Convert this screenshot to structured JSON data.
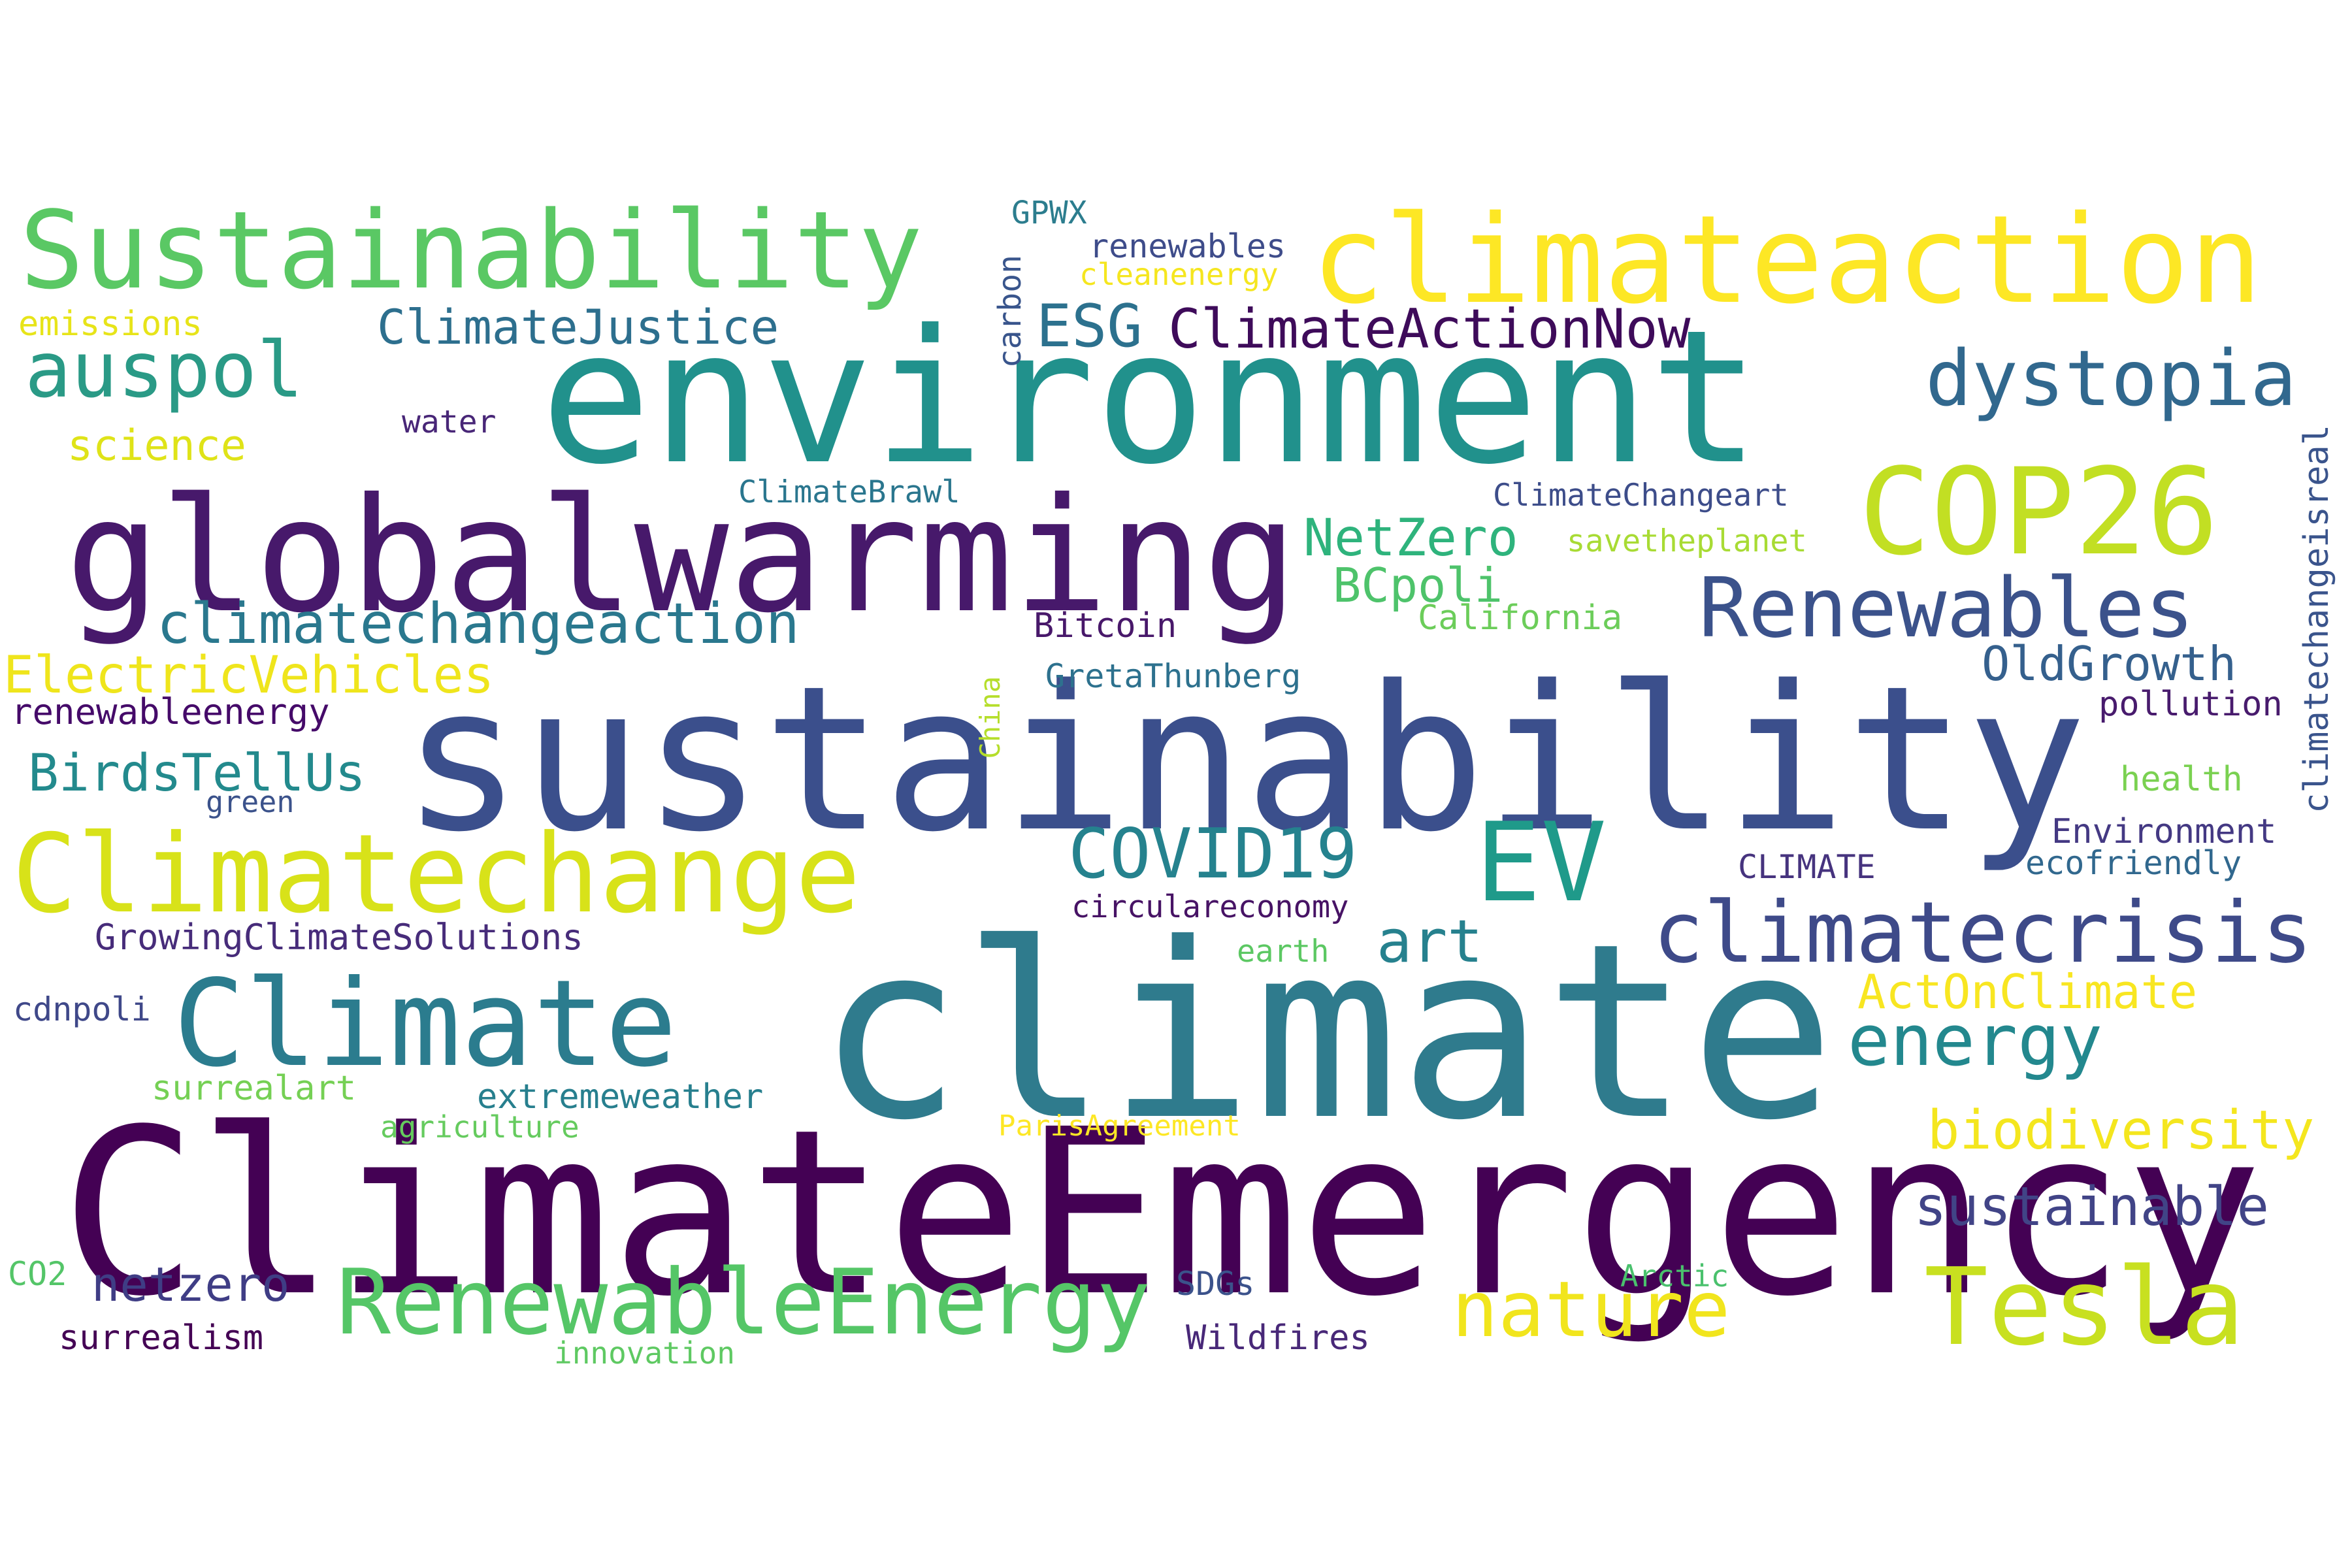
{
  "cloud": {
    "words": [
      {
        "text": "climate",
        "color": "#2f7b8d"
      },
      {
        "text": "ClimateEmergency",
        "color": "#440154"
      },
      {
        "text": "sustainability",
        "color": "#3b4f8c"
      },
      {
        "text": "environment",
        "color": "#21918c"
      },
      {
        "text": "globalwarming",
        "color": "#47196b"
      },
      {
        "text": "climateaction",
        "color": "#fde725"
      },
      {
        "text": "Sustainability",
        "color": "#5ac864"
      },
      {
        "text": "Climatechange",
        "color": "#d8e219"
      },
      {
        "text": "Climate",
        "color": "#2b7c8e"
      },
      {
        "text": "COP26",
        "color": "#c2df23"
      },
      {
        "text": "RenewableEnergy",
        "color": "#55c667"
      },
      {
        "text": "Tesla",
        "color": "#c8e020"
      },
      {
        "text": "EV",
        "color": "#1f9a8a"
      },
      {
        "text": "climatecrisis",
        "color": "#3e4a89"
      },
      {
        "text": "Renewables",
        "color": "#3b528b"
      },
      {
        "text": "dystopia",
        "color": "#31688e"
      },
      {
        "text": "nature",
        "color": "#f1e51d"
      },
      {
        "text": "auspol",
        "color": "#2a9a86"
      },
      {
        "text": "energy",
        "color": "#23888e"
      },
      {
        "text": "COVID19",
        "color": "#25828e"
      },
      {
        "text": "climatechangeaction",
        "color": "#2a788e"
      },
      {
        "text": "ClimateActionNow",
        "color": "#3e0b5a"
      },
      {
        "text": "ClimateJustice",
        "color": "#2d6f8e"
      },
      {
        "text": "ESG",
        "color": "#2c718e"
      },
      {
        "text": "sustainable",
        "color": "#414487"
      },
      {
        "text": "biodiversity",
        "color": "#f4e61e"
      },
      {
        "text": "art",
        "color": "#26818e"
      },
      {
        "text": "NetZero",
        "color": "#2eb37c"
      },
      {
        "text": "BirdsTellUs",
        "color": "#238a8d"
      },
      {
        "text": "ElectricVehicles",
        "color": "#efe51c"
      },
      {
        "text": "netzero",
        "color": "#3f3d85"
      },
      {
        "text": "OldGrowth",
        "color": "#35608d"
      },
      {
        "text": "ActOnClimate",
        "color": "#f8e621"
      },
      {
        "text": "BCpoli",
        "color": "#4ec36b"
      },
      {
        "text": "science",
        "color": "#dfe318"
      },
      {
        "text": "GrowingClimateSolutions",
        "color": "#472c7a"
      },
      {
        "text": "renewableenergy",
        "color": "#450a69"
      },
      {
        "text": "emissions",
        "color": "#e7e419"
      },
      {
        "text": "renewables",
        "color": "#3e4c8a"
      },
      {
        "text": "cleanenergy",
        "color": "#f5e61f"
      },
      {
        "text": "GPWX",
        "color": "#2c7d8e"
      },
      {
        "text": "carbon",
        "color": "#39558c"
      },
      {
        "text": "water",
        "color": "#482677"
      },
      {
        "text": "ClimateBrawl",
        "color": "#2a768e"
      },
      {
        "text": "ClimateChangeart",
        "color": "#3d4d8a"
      },
      {
        "text": "savetheplanet",
        "color": "#a8db34"
      },
      {
        "text": "California",
        "color": "#6ccd5a"
      },
      {
        "text": "Bitcoin",
        "color": "#48186a"
      },
      {
        "text": "GretaThunberg",
        "color": "#2d718e"
      },
      {
        "text": "pollution",
        "color": "#481b6d"
      },
      {
        "text": "climatechangeisreal",
        "color": "#3a548c"
      },
      {
        "text": "health",
        "color": "#7ad151"
      },
      {
        "text": "Environment",
        "color": "#443983"
      },
      {
        "text": "ecofriendly",
        "color": "#31688e"
      },
      {
        "text": "CLIMATE",
        "color": "#46337e"
      },
      {
        "text": "circulareconomy",
        "color": "#471365"
      },
      {
        "text": "earth",
        "color": "#5cc863"
      },
      {
        "text": "China",
        "color": "#b5de2b"
      },
      {
        "text": "green",
        "color": "#3b528b"
      },
      {
        "text": "cdnpoli",
        "color": "#3f4889"
      },
      {
        "text": "surrealart",
        "color": "#75d054"
      },
      {
        "text": "extremeweather",
        "color": "#277f8e"
      },
      {
        "text": "agriculture",
        "color": "#65cb5e"
      },
      {
        "text": "ParisAgreement",
        "color": "#fde725"
      },
      {
        "text": "CO2",
        "color": "#54c568"
      },
      {
        "text": "surrealism",
        "color": "#440154"
      },
      {
        "text": "innovation",
        "color": "#5ec962"
      },
      {
        "text": "SDGs",
        "color": "#3b528b"
      },
      {
        "text": "Wildfires",
        "color": "#482878"
      },
      {
        "text": "Arctic",
        "color": "#4ac16d"
      }
    ]
  }
}
